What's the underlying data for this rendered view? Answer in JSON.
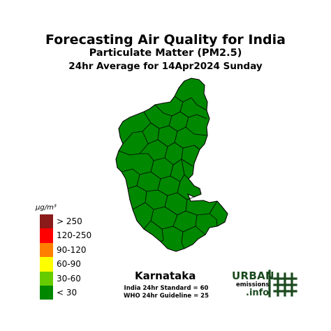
{
  "title": "Forecasting Air Quality for India",
  "subtitle": "Particulate Matter (PM2.5)",
  "period": "24hr Average for 14Apr2024 Sunday",
  "region": "Karnataka",
  "region_color": "#008800",
  "legend": {
    "unit": "μg/m³",
    "bins": [
      {
        "label": "> 250",
        "color": "#8b1a1a"
      },
      {
        "label": "120-250",
        "color": "#ff0000"
      },
      {
        "label": "90-120",
        "color": "#ff7f00"
      },
      {
        "label": "60-90",
        "color": "#ffff00"
      },
      {
        "label": "30-60",
        "color": "#66cc00"
      },
      {
        "label": "< 30",
        "color": "#008800"
      }
    ]
  },
  "standards": {
    "india": "India 24hr Standard = 60",
    "who": "WHO 24hr Guideline = 25"
  },
  "logo": {
    "line1": "URBAN",
    "line2": "emissions",
    "line3": ".info",
    "color": "#1b4a1f"
  }
}
